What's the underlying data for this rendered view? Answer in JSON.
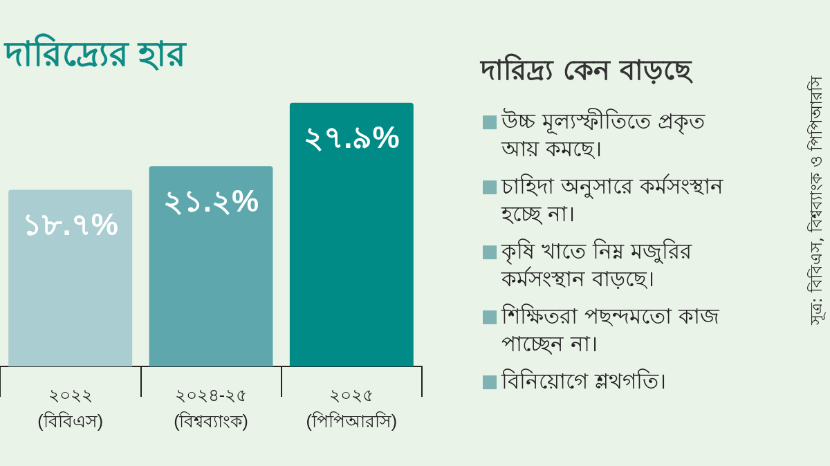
{
  "chart_data": [
    {
      "type": "bar",
      "title": "দারিদ্র্যের হার",
      "categories": [
        "২০২২\n(বিবিএস)",
        "২০২৪-২৫\n(বিশ্বব্যাংক)",
        "২০২৫\n(পিপিআরসি)"
      ],
      "values": [
        18.7,
        21.2,
        27.9
      ],
      "colors": [
        "#a9cdd0",
        "#5ea8ad",
        "#008b87"
      ],
      "value_labels": [
        "১৮.৭%",
        "২১.২%",
        "২৭.৯%"
      ],
      "tick_labels": "x",
      "annotations": [
        "সূত্র: বিবিএস, বিশ্বব্যাংক ও পিপিআরসি"
      ]
    },
    {
      "type": "other",
      "title": "দারিদ্র্য কেন বাড়ছে",
      "annotations": [
        "উচ্চ মূল্যস্ফীতিতে প্রকৃত আয় কমছে।",
        "চাহিদা অনুসারে কর্মসংস্থান হচ্ছে না।",
        "কৃষি খাতে নিম্ন মজুরির কর্মসংস্থান বাড়ছে।",
        "শিক্ষিতরা পছন্দমতো কাজ পাচ্ছেন না।",
        "বিনিয়োগে শ্লথগতি।"
      ]
    }
  ]
}
